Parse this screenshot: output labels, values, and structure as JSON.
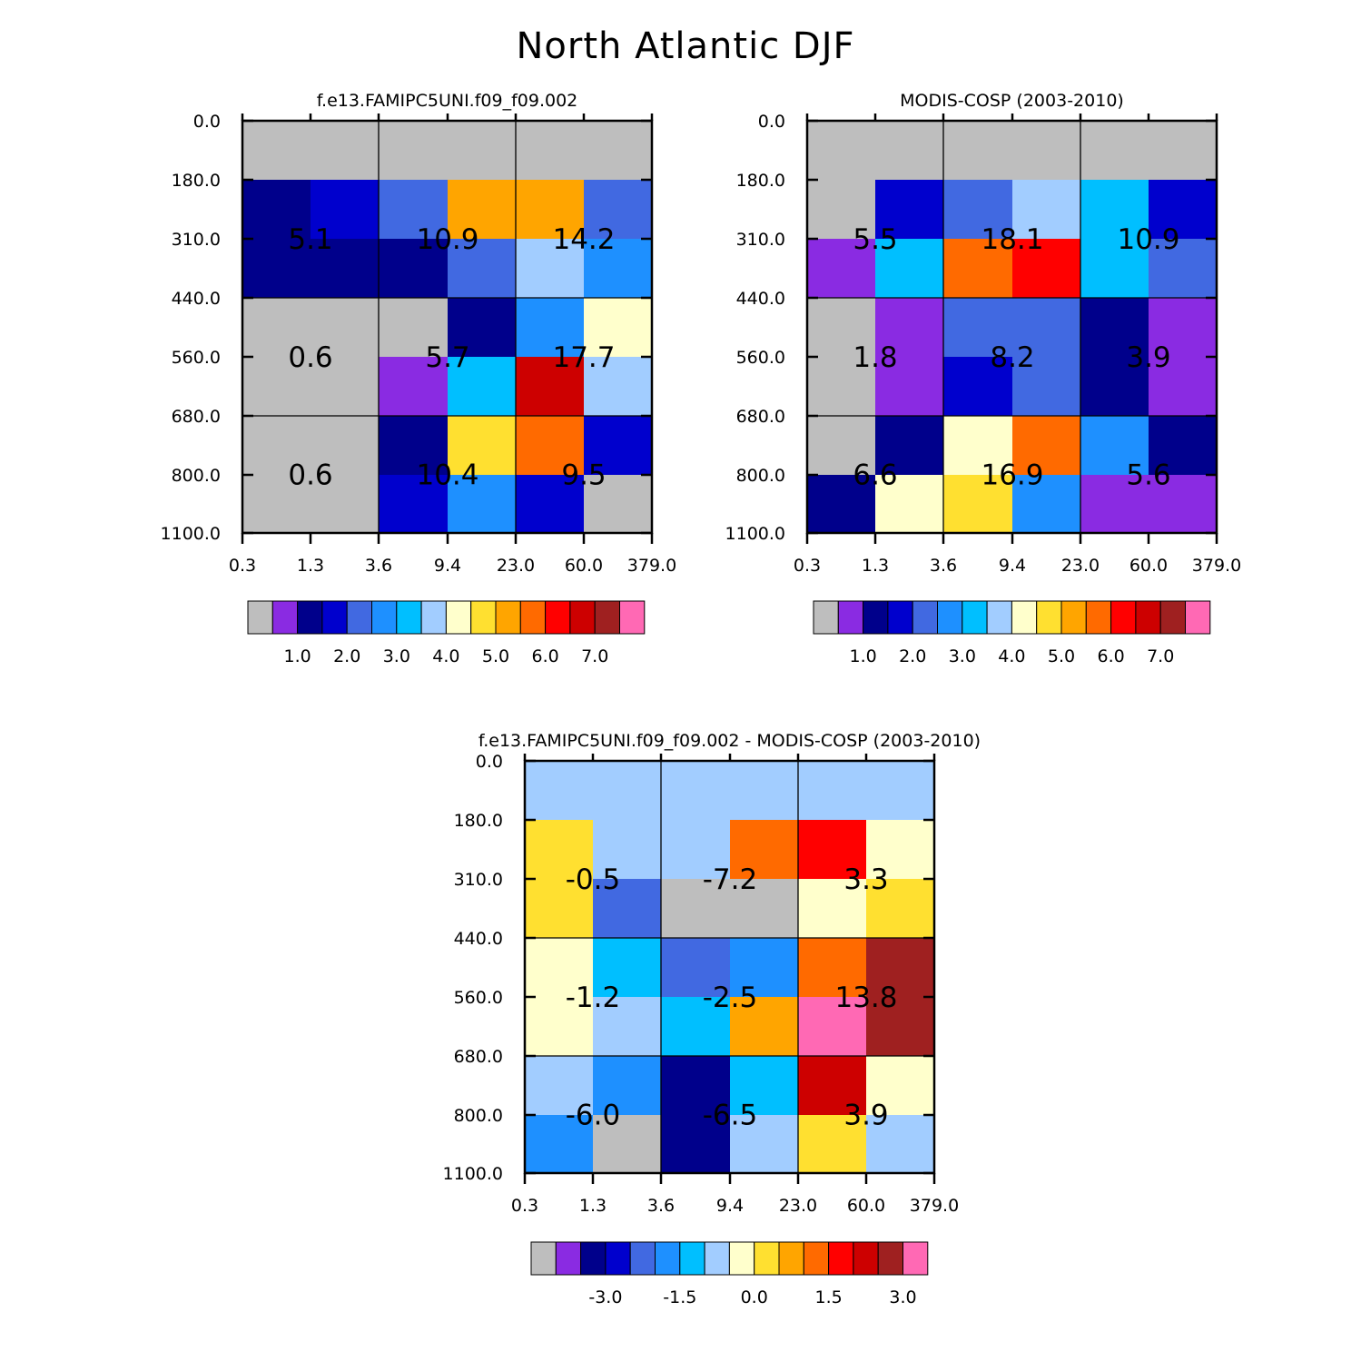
{
  "title": "North Atlantic DJF",
  "palette": [
    "#bebebe",
    "#8a2be2",
    "#00008b",
    "#0000cd",
    "#4169e1",
    "#1e90ff",
    "#00bfff",
    "#a2cdff",
    "#ffffcc",
    "#ffe030",
    "#ffa500",
    "#ff6a00",
    "#ff0000",
    "#cd0000",
    "#9f2020",
    "#ff69b4"
  ],
  "chart_data": [
    {
      "type": "heatmap",
      "title": "f.e13.FAMIPC5UNI.f09_f09.002",
      "xticks": [
        "0.3",
        "1.3",
        "3.6",
        "9.4",
        "23.0",
        "60.0",
        "379.0"
      ],
      "yticks": [
        "0.0",
        "180.0",
        "310.0",
        "440.0",
        "560.0",
        "680.0",
        "800.0",
        "1100.0"
      ],
      "grid": [
        [
          0,
          0,
          0,
          0,
          0,
          0
        ],
        [
          2,
          3,
          4,
          10,
          10,
          4
        ],
        [
          2,
          2,
          2,
          4,
          7,
          5
        ],
        [
          0,
          0,
          0,
          2,
          5,
          8
        ],
        [
          0,
          0,
          1,
          6,
          13,
          7
        ],
        [
          0,
          0,
          2,
          9,
          11,
          3
        ],
        [
          0,
          0,
          3,
          5,
          3,
          0
        ]
      ],
      "block_labels": [
        [
          "5.1",
          "10.9",
          "14.2"
        ],
        [
          "0.6",
          "5.7",
          "17.7"
        ],
        [
          "0.6",
          "10.4",
          "9.5"
        ]
      ],
      "colorbar": {
        "labels": [
          "1.0",
          "2.0",
          "3.0",
          "4.0",
          "5.0",
          "6.0",
          "7.0"
        ]
      }
    },
    {
      "type": "heatmap",
      "title": "MODIS-COSP (2003-2010)",
      "xticks": [
        "0.3",
        "1.3",
        "3.6",
        "9.4",
        "23.0",
        "60.0",
        "379.0"
      ],
      "yticks": [
        "0.0",
        "180.0",
        "310.0",
        "440.0",
        "560.0",
        "680.0",
        "800.0",
        "1100.0"
      ],
      "grid": [
        [
          0,
          0,
          0,
          0,
          0,
          0
        ],
        [
          0,
          3,
          4,
          7,
          6,
          3
        ],
        [
          1,
          6,
          11,
          12,
          6,
          4
        ],
        [
          0,
          1,
          4,
          4,
          2,
          1
        ],
        [
          0,
          1,
          3,
          4,
          2,
          1
        ],
        [
          0,
          2,
          8,
          11,
          5,
          2
        ],
        [
          2,
          8,
          9,
          5,
          1,
          1
        ]
      ],
      "block_labels": [
        [
          "5.5",
          "18.1",
          "10.9"
        ],
        [
          "1.8",
          "8.2",
          "3.9"
        ],
        [
          "6.6",
          "16.9",
          "5.6"
        ]
      ],
      "colorbar": {
        "labels": [
          "1.0",
          "2.0",
          "3.0",
          "4.0",
          "5.0",
          "6.0",
          "7.0"
        ]
      }
    },
    {
      "type": "heatmap",
      "title": "f.e13.FAMIPC5UNI.f09_f09.002 - MODIS-COSP (2003-2010)",
      "xticks": [
        "0.3",
        "1.3",
        "3.6",
        "9.4",
        "23.0",
        "60.0",
        "379.0"
      ],
      "yticks": [
        "0.0",
        "180.0",
        "310.0",
        "440.0",
        "560.0",
        "680.0",
        "800.0",
        "1100.0"
      ],
      "grid": [
        [
          7,
          7,
          7,
          7,
          7,
          7
        ],
        [
          9,
          7,
          7,
          11,
          12,
          8
        ],
        [
          9,
          4,
          0,
          0,
          8,
          9
        ],
        [
          8,
          6,
          4,
          5,
          11,
          14
        ],
        [
          8,
          7,
          6,
          10,
          15,
          14
        ],
        [
          7,
          5,
          2,
          6,
          13,
          8
        ],
        [
          5,
          0,
          2,
          7,
          9,
          7
        ]
      ],
      "block_labels": [
        [
          "-0.5",
          "-7.2",
          "3.3"
        ],
        [
          "-1.2",
          "-2.5",
          "13.8"
        ],
        [
          "-6.0",
          "-6.5",
          "3.9"
        ]
      ],
      "colorbar": {
        "labels": [
          "-3.0",
          "-1.5",
          "0.0",
          "1.5",
          "3.0"
        ]
      }
    }
  ]
}
